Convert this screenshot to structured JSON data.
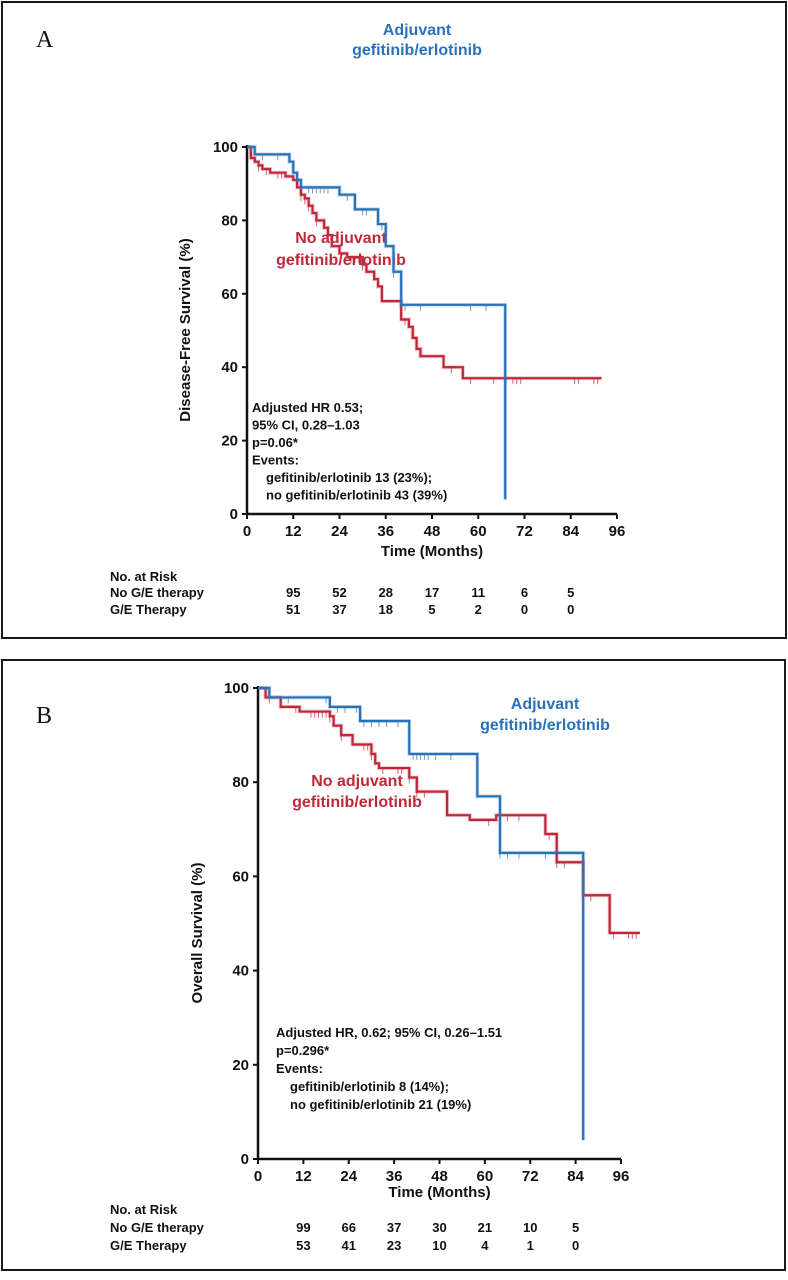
{
  "chart_data": [
    {
      "type": "line",
      "panel": "A",
      "title": "",
      "xlabel": "Time (Months)",
      "ylabel": "Disease-Free Survival (%)",
      "xlim": [
        0,
        96
      ],
      "ylim": [
        0,
        100
      ],
      "xticks": [
        "0",
        "12",
        "24",
        "36",
        "48",
        "60",
        "72",
        "84",
        "96"
      ],
      "yticks": [
        "0",
        "20",
        "40",
        "60",
        "80",
        "100"
      ],
      "grid": false,
      "series": [
        {
          "name": "Adjuvant gefitinib/erlotinib",
          "color": "#2a72b8",
          "legend_lines": [
            "Adjuvant",
            "gefitinib/erlotinib"
          ],
          "steps": [
            [
              0,
              100
            ],
            [
              2,
              100
            ],
            [
              2,
              98
            ],
            [
              11,
              98
            ],
            [
              11,
              96
            ],
            [
              12,
              96
            ],
            [
              12,
              93
            ],
            [
              13,
              93
            ],
            [
              13,
              91
            ],
            [
              14,
              91
            ],
            [
              14,
              89
            ],
            [
              24,
              89
            ],
            [
              24,
              87
            ],
            [
              28,
              87
            ],
            [
              28,
              83
            ],
            [
              34,
              83
            ],
            [
              34,
              79
            ],
            [
              36,
              79
            ],
            [
              36,
              73
            ],
            [
              38,
              73
            ],
            [
              38,
              66
            ],
            [
              40,
              66
            ],
            [
              40,
              57
            ],
            [
              67,
              57
            ],
            [
              67,
              4
            ]
          ],
          "censor_times": [
            4,
            8,
            16,
            17,
            18,
            19,
            20,
            21,
            26,
            30,
            31,
            35,
            38,
            41,
            45,
            58,
            62
          ]
        },
        {
          "name": "No adjuvant gefitinib/erlotinib",
          "color": "#c0283a",
          "legend_lines": [
            "No adjuvant",
            "gefitinib/erlotinib"
          ],
          "steps": [
            [
              0,
              100
            ],
            [
              1,
              97
            ],
            [
              2,
              96
            ],
            [
              3,
              95
            ],
            [
              4,
              94
            ],
            [
              6,
              94
            ],
            [
              6,
              93
            ],
            [
              10,
              93
            ],
            [
              10,
              92
            ],
            [
              12,
              92
            ],
            [
              12,
              91
            ],
            [
              13,
              91
            ],
            [
              13,
              89
            ],
            [
              14,
              89
            ],
            [
              14,
              87
            ],
            [
              15,
              87
            ],
            [
              15,
              86
            ],
            [
              16,
              86
            ],
            [
              16,
              84
            ],
            [
              17,
              84
            ],
            [
              17,
              82
            ],
            [
              18,
              82
            ],
            [
              18,
              80
            ],
            [
              20,
              80
            ],
            [
              20,
              78
            ],
            [
              21,
              78
            ],
            [
              21,
              76
            ],
            [
              22,
              76
            ],
            [
              22,
              73
            ],
            [
              24,
              73
            ],
            [
              24,
              71
            ],
            [
              26,
              71
            ],
            [
              26,
              70
            ],
            [
              30,
              70
            ],
            [
              30,
              68
            ],
            [
              31,
              68
            ],
            [
              31,
              66
            ],
            [
              33,
              66
            ],
            [
              33,
              64
            ],
            [
              34,
              64
            ],
            [
              34,
              62
            ],
            [
              35,
              62
            ],
            [
              35,
              58
            ],
            [
              40,
              58
            ],
            [
              40,
              53
            ],
            [
              42,
              53
            ],
            [
              42,
              51
            ],
            [
              43,
              51
            ],
            [
              43,
              48
            ],
            [
              44,
              48
            ],
            [
              44,
              45
            ],
            [
              45,
              45
            ],
            [
              45,
              43
            ],
            [
              51,
              43
            ],
            [
              51,
              40
            ],
            [
              56,
              40
            ],
            [
              56,
              37
            ],
            [
              92,
              37
            ]
          ],
          "censor_times": [
            3,
            5,
            8,
            9,
            14,
            15,
            16,
            18,
            27,
            28,
            29,
            30,
            41,
            53,
            58,
            64,
            69,
            70,
            71,
            85,
            86,
            90,
            91
          ]
        }
      ],
      "annotation": [
        "Adjusted HR 0.53;",
        "95% CI, 0.28–1.03",
        "p=0.06*",
        "Events:",
        "gefitinib/erlotinib 13 (23%);",
        "no gefitinib/erlotinib 43 (39%)"
      ],
      "risk_table": {
        "header": "No. at Risk",
        "times": [
          12,
          24,
          36,
          48,
          60,
          72,
          84
        ],
        "rows": [
          {
            "label": "No G/E therapy",
            "values": [
              "95",
              "52",
              "28",
              "17",
              "11",
              "6",
              "5"
            ]
          },
          {
            "label": "G/E Therapy",
            "values": [
              "51",
              "37",
              "18",
              "5",
              "2",
              "0",
              "0"
            ]
          }
        ]
      }
    },
    {
      "type": "line",
      "panel": "B",
      "title": "",
      "xlabel": "Time (Months)",
      "ylabel": "Overall Survival (%)",
      "xlim": [
        0,
        96
      ],
      "ylim": [
        0,
        100
      ],
      "xticks": [
        "0",
        "12",
        "24",
        "36",
        "48",
        "60",
        "72",
        "84",
        "96"
      ],
      "yticks": [
        "0",
        "20",
        "40",
        "60",
        "80",
        "100"
      ],
      "grid": false,
      "series": [
        {
          "name": "Adjuvant gefitinib/erlotinib",
          "color": "#2a72b8",
          "legend_lines": [
            "Adjuvant",
            "gefitinib/erlotinib"
          ],
          "steps": [
            [
              0,
              100
            ],
            [
              3,
              100
            ],
            [
              3,
              98
            ],
            [
              19,
              98
            ],
            [
              19,
              96
            ],
            [
              27,
              96
            ],
            [
              27,
              93
            ],
            [
              40,
              93
            ],
            [
              40,
              86
            ],
            [
              58,
              86
            ],
            [
              58,
              77
            ],
            [
              64,
              77
            ],
            [
              64,
              65
            ],
            [
              86,
              65
            ],
            [
              86,
              4
            ]
          ],
          "censor_times": [
            8,
            18,
            21,
            23,
            26,
            28,
            30,
            32,
            34,
            37,
            41,
            42,
            43,
            44,
            45,
            47,
            51,
            64,
            66,
            69,
            76
          ]
        },
        {
          "name": "No adjuvant gefitinib/erlotinib",
          "color": "#c0283a",
          "legend_lines": [
            "No adjuvant",
            "gefitinib/erlotinib"
          ],
          "steps": [
            [
              0,
              100
            ],
            [
              2,
              98
            ],
            [
              6,
              98
            ],
            [
              6,
              96
            ],
            [
              11,
              96
            ],
            [
              11,
              95
            ],
            [
              19,
              95
            ],
            [
              19,
              94
            ],
            [
              20,
              94
            ],
            [
              20,
              92
            ],
            [
              22,
              92
            ],
            [
              22,
              90
            ],
            [
              25,
              90
            ],
            [
              25,
              88
            ],
            [
              30,
              88
            ],
            [
              30,
              86
            ],
            [
              31,
              86
            ],
            [
              31,
              84
            ],
            [
              32,
              84
            ],
            [
              32,
              83
            ],
            [
              40,
              83
            ],
            [
              40,
              81
            ],
            [
              42,
              81
            ],
            [
              42,
              78
            ],
            [
              50,
              78
            ],
            [
              50,
              73
            ],
            [
              56,
              73
            ],
            [
              56,
              72
            ],
            [
              63,
              72
            ],
            [
              63,
              73
            ],
            [
              76,
              73
            ],
            [
              76,
              69
            ],
            [
              79,
              69
            ],
            [
              79,
              63
            ],
            [
              85,
              63
            ],
            [
              86,
              56
            ],
            [
              93,
              56
            ],
            [
              93,
              48
            ],
            [
              101,
              48
            ]
          ],
          "censor_times": [
            3,
            10,
            14,
            15,
            16,
            17,
            18,
            19,
            22,
            28,
            29,
            30,
            33,
            37,
            38,
            40,
            42,
            44,
            61,
            64,
            66,
            69,
            77,
            79,
            81,
            88,
            94,
            98,
            99,
            100
          ]
        }
      ],
      "annotation": [
        "Adjusted HR, 0.62; 95% CI, 0.26–1.51",
        "p=0.296*",
        "Events:",
        "gefitinib/erlotinib 8 (14%);",
        "no gefitinib/erlotinib 21 (19%)"
      ],
      "risk_table": {
        "header": "No. at Risk",
        "times": [
          12,
          24,
          36,
          48,
          60,
          72,
          84
        ],
        "rows": [
          {
            "label": "No G/E therapy",
            "values": [
              "99",
              "66",
              "37",
              "30",
              "21",
              "10",
              "5"
            ]
          },
          {
            "label": "G/E Therapy",
            "values": [
              "53",
              "41",
              "23",
              "10",
              "4",
              "1",
              "0"
            ]
          }
        ]
      }
    }
  ],
  "panels": {
    "A": {
      "letter": "A"
    },
    "B": {
      "letter": "B"
    }
  }
}
